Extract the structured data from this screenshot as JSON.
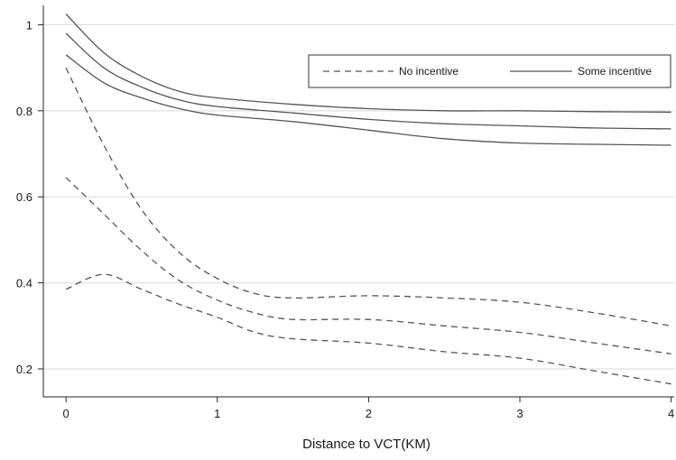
{
  "chart_data": {
    "type": "line",
    "title": "",
    "xlabel": "Distance to VCT(KM)",
    "ylabel": "",
    "xlim": [
      -0.15,
      4.02
    ],
    "ylim": [
      0.135,
      1.045
    ],
    "x_ticks": [
      0,
      1,
      2,
      3,
      4
    ],
    "x_tick_labels": [
      "0",
      "1",
      "2",
      "3",
      "4"
    ],
    "y_ticks": [
      0.2,
      0.4,
      0.6,
      0.8,
      1.0
    ],
    "y_tick_labels": [
      "0.2",
      "0.4",
      "0.6",
      "0.8",
      "1"
    ],
    "grid": "horizontal",
    "legend_position": "top-right",
    "legend": [
      {
        "label": "No incentive",
        "style": "dashed"
      },
      {
        "label": "Some incentive",
        "style": "solid"
      }
    ],
    "line_color": "#555555",
    "series": [
      {
        "group": "Some incentive",
        "style": "solid",
        "role": "upper",
        "x": [
          0,
          0.25,
          0.5,
          0.75,
          1,
          1.5,
          2,
          2.5,
          3,
          3.5,
          4
        ],
        "y": [
          1.025,
          0.935,
          0.88,
          0.845,
          0.83,
          0.815,
          0.805,
          0.8,
          0.8,
          0.798,
          0.797
        ]
      },
      {
        "group": "Some incentive",
        "style": "solid",
        "role": "estimate",
        "x": [
          0,
          0.25,
          0.5,
          0.75,
          1,
          1.5,
          2,
          2.5,
          3,
          3.5,
          4
        ],
        "y": [
          0.98,
          0.9,
          0.855,
          0.825,
          0.81,
          0.795,
          0.78,
          0.77,
          0.765,
          0.76,
          0.758
        ]
      },
      {
        "group": "Some incentive",
        "style": "solid",
        "role": "lower",
        "x": [
          0,
          0.25,
          0.5,
          0.75,
          1,
          1.5,
          2,
          2.5,
          3,
          3.5,
          4
        ],
        "y": [
          0.93,
          0.865,
          0.83,
          0.805,
          0.79,
          0.775,
          0.755,
          0.735,
          0.725,
          0.722,
          0.72
        ]
      },
      {
        "group": "No incentive",
        "style": "dashed",
        "role": "upper",
        "x": [
          0,
          0.25,
          0.5,
          0.75,
          1,
          1.25,
          1.5,
          2,
          2.5,
          3,
          3.5,
          4
        ],
        "y": [
          0.9,
          0.72,
          0.57,
          0.47,
          0.41,
          0.375,
          0.365,
          0.37,
          0.365,
          0.355,
          0.33,
          0.3
        ]
      },
      {
        "group": "No incentive",
        "style": "dashed",
        "role": "estimate",
        "x": [
          0,
          0.25,
          0.5,
          0.75,
          1,
          1.25,
          1.5,
          2,
          2.5,
          3,
          3.5,
          4
        ],
        "y": [
          0.645,
          0.56,
          0.475,
          0.405,
          0.36,
          0.33,
          0.315,
          0.315,
          0.3,
          0.285,
          0.26,
          0.235
        ]
      },
      {
        "group": "No incentive",
        "style": "dashed",
        "role": "lower",
        "x": [
          0,
          0.25,
          0.5,
          0.75,
          1,
          1.25,
          1.5,
          2,
          2.5,
          3,
          3.5,
          4
        ],
        "y": [
          0.385,
          0.42,
          0.385,
          0.35,
          0.32,
          0.285,
          0.27,
          0.26,
          0.24,
          0.225,
          0.195,
          0.165
        ]
      }
    ]
  }
}
